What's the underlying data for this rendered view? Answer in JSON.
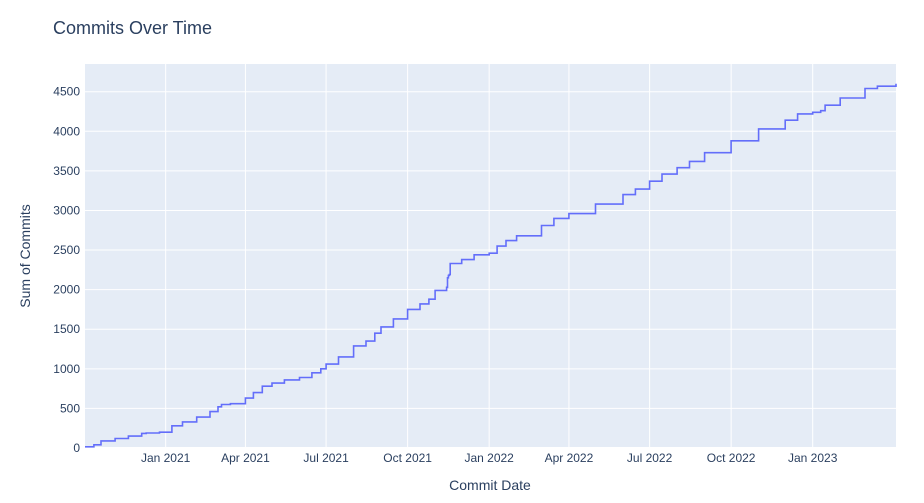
{
  "chart_data": {
    "type": "line",
    "title": "Commits Over Time",
    "xlabel": "Commit Date",
    "ylabel": "Sum of Commits",
    "xlim": [
      "2020-10-02",
      "2023-04-05"
    ],
    "ylim": [
      0,
      4850
    ],
    "x_ticks": [
      {
        "date": "2021-01-01",
        "label": "Jan 2021"
      },
      {
        "date": "2021-04-01",
        "label": "Apr 2021"
      },
      {
        "date": "2021-07-01",
        "label": "Jul 2021"
      },
      {
        "date": "2021-10-01",
        "label": "Oct 2021"
      },
      {
        "date": "2022-01-01",
        "label": "Jan 2022"
      },
      {
        "date": "2022-04-01",
        "label": "Apr 2022"
      },
      {
        "date": "2022-07-01",
        "label": "Jul 2022"
      },
      {
        "date": "2022-10-01",
        "label": "Oct 2022"
      },
      {
        "date": "2023-01-01",
        "label": "Jan 2023"
      }
    ],
    "y_ticks": [
      {
        "value": 0,
        "label": "0"
      },
      {
        "value": 500,
        "label": "500"
      },
      {
        "value": 1000,
        "label": "1000"
      },
      {
        "value": 1500,
        "label": "1500"
      },
      {
        "value": 2000,
        "label": "2000"
      },
      {
        "value": 2500,
        "label": "2500"
      },
      {
        "value": 3000,
        "label": "3000"
      },
      {
        "value": 3500,
        "label": "3500"
      },
      {
        "value": 4000,
        "label": "4000"
      },
      {
        "value": 4500,
        "label": "4500"
      }
    ],
    "grid": true,
    "colors": {
      "line": "#636efa",
      "plot_bg": "#e5ecf6",
      "grid": "#ffffff",
      "text": "#2a3f5f"
    },
    "series": [
      {
        "x": [
          "2020-10-02",
          "2020-10-12",
          "2020-10-20",
          "2020-11-05",
          "2020-11-20",
          "2020-12-05",
          "2020-12-10",
          "2020-12-25",
          "2021-01-08",
          "2021-01-20",
          "2021-02-05",
          "2021-02-20",
          "2021-03-01",
          "2021-03-05",
          "2021-03-15",
          "2021-04-01",
          "2021-04-10",
          "2021-04-20",
          "2021-05-01",
          "2021-05-15",
          "2021-06-01",
          "2021-06-15",
          "2021-06-25",
          "2021-07-01",
          "2021-07-15",
          "2021-08-01",
          "2021-08-15",
          "2021-08-25",
          "2021-09-01",
          "2021-09-15",
          "2021-10-01",
          "2021-10-15",
          "2021-10-25",
          "2021-11-01",
          "2021-11-14",
          "2021-11-15",
          "2021-11-16",
          "2021-11-17",
          "2021-11-18",
          "2021-12-01",
          "2021-12-15",
          "2022-01-01",
          "2022-01-10",
          "2022-01-20",
          "2022-02-01",
          "2022-03-01",
          "2022-03-15",
          "2022-04-01",
          "2022-05-01",
          "2022-06-01",
          "2022-06-15",
          "2022-07-01",
          "2022-07-15",
          "2022-08-01",
          "2022-08-15",
          "2022-09-01",
          "2022-10-01",
          "2022-11-01",
          "2022-12-01",
          "2022-12-15",
          "2023-01-01",
          "2023-01-10",
          "2023-01-15",
          "2023-02-01",
          "2023-03-01",
          "2023-03-15",
          "2023-04-05"
        ],
        "y": [
          15,
          40,
          90,
          120,
          150,
          185,
          190,
          200,
          280,
          330,
          390,
          460,
          520,
          550,
          560,
          630,
          700,
          780,
          820,
          860,
          890,
          950,
          1000,
          1060,
          1150,
          1290,
          1350,
          1450,
          1530,
          1630,
          1750,
          1820,
          1880,
          1990,
          2030,
          2150,
          2180,
          2190,
          2330,
          2380,
          2440,
          2460,
          2550,
          2620,
          2680,
          2810,
          2900,
          2960,
          3080,
          3200,
          3270,
          3370,
          3460,
          3540,
          3620,
          3730,
          3880,
          4030,
          4140,
          4220,
          4240,
          4260,
          4330,
          4420,
          4540,
          4570,
          4600
        ]
      }
    ]
  }
}
